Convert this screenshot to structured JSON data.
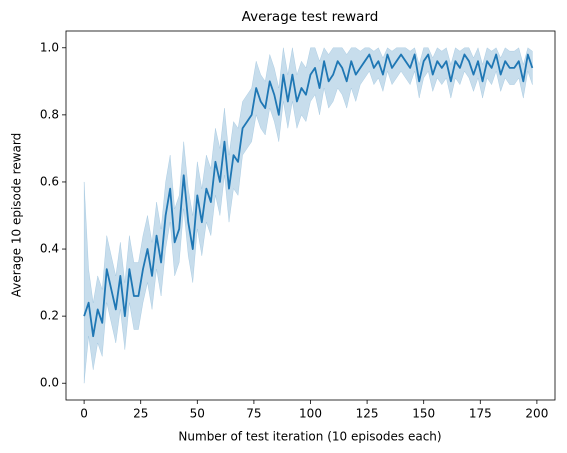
{
  "chart_data": {
    "type": "line_band",
    "title": "Average test reward",
    "x_label": "Number of test iteration (10 episodes each)",
    "y_label": "Average 10 episode reward",
    "color": "#1f77b4",
    "xlim": [
      -8,
      208
    ],
    "ylim": [
      -0.05,
      1.05
    ],
    "xticks": [
      0,
      25,
      50,
      75,
      100,
      125,
      150,
      175,
      200
    ],
    "yticks": [
      {
        "value": 0,
        "label": "0.0"
      },
      {
        "value": 0.2,
        "label": "0.2"
      },
      {
        "value": 0.4,
        "label": "0.4"
      },
      {
        "value": 0.6,
        "label": "0.6"
      },
      {
        "value": 0.8,
        "label": "0.8"
      },
      {
        "value": 1,
        "label": "1.0"
      }
    ],
    "x": [
      0,
      2,
      4,
      6,
      8,
      10,
      12,
      14,
      16,
      18,
      20,
      22,
      24,
      26,
      28,
      30,
      32,
      34,
      36,
      38,
      40,
      42,
      44,
      46,
      48,
      50,
      52,
      54,
      56,
      58,
      60,
      62,
      64,
      66,
      68,
      70,
      72,
      74,
      76,
      78,
      80,
      82,
      84,
      86,
      88,
      90,
      92,
      94,
      96,
      98,
      100,
      102,
      104,
      106,
      108,
      110,
      112,
      114,
      116,
      118,
      120,
      122,
      124,
      126,
      128,
      130,
      132,
      134,
      136,
      138,
      140,
      142,
      144,
      146,
      148,
      150,
      152,
      154,
      156,
      158,
      160,
      162,
      164,
      166,
      168,
      170,
      172,
      174,
      176,
      178,
      180,
      182,
      184,
      186,
      188,
      190,
      192,
      194,
      196,
      198
    ],
    "values": [
      0.2,
      0.24,
      0.14,
      0.22,
      0.18,
      0.34,
      0.28,
      0.22,
      0.32,
      0.2,
      0.34,
      0.26,
      0.26,
      0.34,
      0.4,
      0.32,
      0.44,
      0.36,
      0.5,
      0.58,
      0.42,
      0.46,
      0.62,
      0.48,
      0.4,
      0.56,
      0.48,
      0.58,
      0.54,
      0.66,
      0.6,
      0.72,
      0.58,
      0.68,
      0.66,
      0.76,
      0.78,
      0.8,
      0.88,
      0.84,
      0.82,
      0.9,
      0.86,
      0.8,
      0.92,
      0.84,
      0.92,
      0.84,
      0.88,
      0.86,
      0.92,
      0.94,
      0.88,
      0.96,
      0.9,
      0.92,
      0.96,
      0.94,
      0.9,
      0.96,
      0.92,
      0.94,
      0.96,
      0.98,
      0.94,
      0.96,
      0.92,
      0.98,
      0.94,
      0.96,
      0.98,
      0.96,
      0.94,
      0.98,
      0.9,
      0.96,
      0.98,
      0.92,
      0.96,
      0.94,
      0.96,
      0.9,
      0.96,
      0.94,
      0.98,
      0.96,
      0.92,
      0.96,
      0.9,
      0.96,
      0.94,
      0.98,
      0.92,
      0.96,
      0.94,
      0.94,
      0.96,
      0.9,
      0.98,
      0.94
    ],
    "lower": [
      0,
      0.14,
      0.04,
      0.12,
      0.08,
      0.24,
      0.18,
      0.12,
      0.22,
      0.1,
      0.24,
      0.16,
      0.16,
      0.24,
      0.3,
      0.22,
      0.34,
      0.26,
      0.4,
      0.48,
      0.32,
      0.36,
      0.52,
      0.38,
      0.3,
      0.46,
      0.38,
      0.48,
      0.44,
      0.56,
      0.5,
      0.62,
      0.48,
      0.58,
      0.56,
      0.68,
      0.7,
      0.72,
      0.8,
      0.76,
      0.74,
      0.82,
      0.78,
      0.72,
      0.84,
      0.76,
      0.84,
      0.76,
      0.8,
      0.78,
      0.84,
      0.86,
      0.8,
      0.88,
      0.82,
      0.84,
      0.88,
      0.86,
      0.82,
      0.88,
      0.84,
      0.89,
      0.91,
      0.93,
      0.89,
      0.91,
      0.87,
      0.93,
      0.89,
      0.91,
      0.93,
      0.91,
      0.89,
      0.93,
      0.85,
      0.91,
      0.93,
      0.87,
      0.91,
      0.89,
      0.91,
      0.85,
      0.91,
      0.89,
      0.93,
      0.91,
      0.87,
      0.91,
      0.85,
      0.91,
      0.89,
      0.93,
      0.87,
      0.91,
      0.89,
      0.89,
      0.91,
      0.85,
      0.93,
      0.89
    ],
    "upper": [
      0.6,
      0.34,
      0.24,
      0.32,
      0.28,
      0.44,
      0.38,
      0.32,
      0.42,
      0.3,
      0.44,
      0.36,
      0.36,
      0.44,
      0.5,
      0.42,
      0.54,
      0.46,
      0.6,
      0.68,
      0.52,
      0.56,
      0.72,
      0.58,
      0.5,
      0.66,
      0.58,
      0.68,
      0.64,
      0.76,
      0.7,
      0.82,
      0.68,
      0.78,
      0.76,
      0.84,
      0.86,
      0.88,
      0.96,
      0.92,
      0.9,
      0.98,
      0.94,
      0.88,
      1,
      0.92,
      1,
      0.92,
      0.96,
      0.94,
      1,
      1,
      0.96,
      1,
      0.98,
      1,
      1,
      1,
      0.98,
      1,
      1,
      0.99,
      1,
      1,
      0.99,
      1,
      0.97,
      1,
      0.99,
      1,
      1,
      1,
      0.99,
      1,
      0.95,
      1,
      1,
      0.97,
      1,
      0.99,
      1,
      0.95,
      1,
      0.99,
      1,
      1,
      0.97,
      1,
      0.95,
      1,
      0.99,
      1,
      0.97,
      1,
      0.99,
      0.99,
      1,
      0.95,
      1,
      0.99
    ]
  }
}
